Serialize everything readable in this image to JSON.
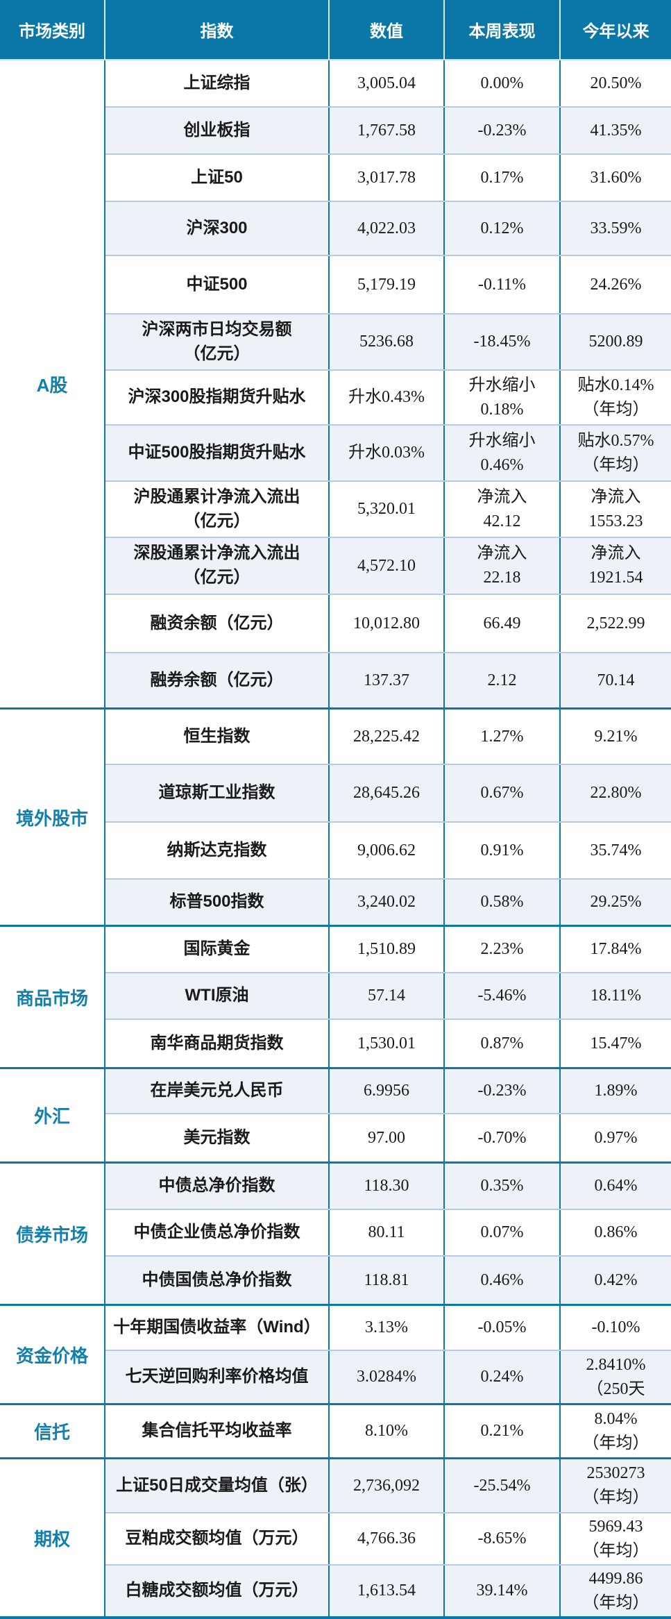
{
  "colors": {
    "teal": "#0b77a6",
    "category_text": "#1280ad",
    "stripe": "#edf2f9",
    "separator": "#b7c9e5",
    "header_text": "#ffffff"
  },
  "header": {
    "category": "市场类别",
    "index": "指数",
    "value": "数值",
    "week": "本周表现",
    "ytd": "今年以来"
  },
  "sections": [
    {
      "category": "A股",
      "rows": [
        {
          "index": "上证综指",
          "value": "3,005.04",
          "week": "0.00%",
          "ytd": "20.50%"
        },
        {
          "index": "创业板指",
          "value": "1,767.58",
          "week": "-0.23%",
          "ytd": "41.35%"
        },
        {
          "index": "上证50",
          "value": "3,017.78",
          "week": "0.17%",
          "ytd": "31.60%"
        },
        {
          "index": "沪深300",
          "value": "4,022.03",
          "week": "0.12%",
          "ytd": "33.59%"
        },
        {
          "index": "中证500",
          "value": "5,179.19",
          "week": "-0.11%",
          "ytd": "24.26%"
        },
        {
          "index": "沪深两市日均交易额\n（亿元）",
          "value": "5236.68",
          "week": "-18.45%",
          "ytd": "5200.89"
        },
        {
          "index": "沪深300股指期货升贴水",
          "value": "升水0.43%",
          "week": "升水缩小\n0.18%",
          "ytd": "贴水0.14%\n（年均）"
        },
        {
          "index": "中证500股指期货升贴水",
          "value": "升水0.03%",
          "week": "升水缩小\n0.46%",
          "ytd": "贴水0.57%\n（年均）"
        },
        {
          "index": "沪股通累计净流入流出\n（亿元）",
          "value": "5,320.01",
          "week": "净流入\n42.12",
          "ytd": "净流入\n1553.23"
        },
        {
          "index": "深股通累计净流入流出\n（亿元）",
          "value": "4,572.10",
          "week": "净流入\n22.18",
          "ytd": "净流入\n1921.54"
        },
        {
          "index": "融资余额（亿元）",
          "value": "10,012.80",
          "week": "66.49",
          "ytd": "2,522.99"
        },
        {
          "index": "融券余额（亿元）",
          "value": "137.37",
          "week": "2.12",
          "ytd": "70.14"
        }
      ]
    },
    {
      "category": "境外股市",
      "rows": [
        {
          "index": "恒生指数",
          "value": "28,225.42",
          "week": "1.27%",
          "ytd": "9.21%"
        },
        {
          "index": "道琼斯工业指数",
          "value": "28,645.26",
          "week": "0.67%",
          "ytd": "22.80%"
        },
        {
          "index": "纳斯达克指数",
          "value": "9,006.62",
          "week": "0.91%",
          "ytd": "35.74%"
        },
        {
          "index": "标普500指数",
          "value": "3,240.02",
          "week": "0.58%",
          "ytd": "29.25%"
        }
      ]
    },
    {
      "category": "商品市场",
      "rows": [
        {
          "index": "国际黄金",
          "value": "1,510.89",
          "week": "2.23%",
          "ytd": "17.84%"
        },
        {
          "index": "WTI原油",
          "value": "57.14",
          "week": "-5.46%",
          "ytd": "18.11%"
        },
        {
          "index": "南华商品期货指数",
          "value": "1,530.01",
          "week": "0.87%",
          "ytd": "15.47%"
        }
      ]
    },
    {
      "category": "外汇",
      "rows": [
        {
          "index": "在岸美元兑人民币",
          "value": "6.9956",
          "week": "-0.23%",
          "ytd": "1.89%"
        },
        {
          "index": "美元指数",
          "value": "97.00",
          "week": "-0.70%",
          "ytd": "0.97%"
        }
      ]
    },
    {
      "category": "债券市场",
      "rows": [
        {
          "index": "中债总净价指数",
          "value": "118.30",
          "week": "0.35%",
          "ytd": "0.64%"
        },
        {
          "index": "中债企业债总净价指数",
          "value": "80.11",
          "week": "0.07%",
          "ytd": "0.86%"
        },
        {
          "index": "中债国债总净价指数",
          "value": "118.81",
          "week": "0.46%",
          "ytd": "0.42%"
        }
      ]
    },
    {
      "category": "资金价格",
      "rows": [
        {
          "index": "十年期国债收益率（Wind）",
          "value": "3.13%",
          "week": "-0.05%",
          "ytd": "-0.10%"
        },
        {
          "index": "七天逆回购利率价格均值",
          "value": "3.0284%",
          "week": "0.24%",
          "ytd": "2.8410%\n（250天"
        }
      ]
    },
    {
      "category": "信托",
      "rows": [
        {
          "index": "集合信托平均收益率",
          "value": "8.10%",
          "week": "0.21%",
          "ytd": "8.04%\n（年均）"
        }
      ]
    },
    {
      "category": "期权",
      "rows": [
        {
          "index": "上证50日成交量均值（张）",
          "value": "2,736,092",
          "week": "-25.54%",
          "ytd": "2530273\n（年均）"
        },
        {
          "index": "豆粕成交额均值（万元）",
          "value": "4,766.36",
          "week": "-8.65%",
          "ytd": "5969.43\n（年均）"
        },
        {
          "index": "白糖成交额均值（万元）",
          "value": "1,613.54",
          "week": "39.14%",
          "ytd": "4499.86\n（年均）"
        }
      ]
    }
  ]
}
